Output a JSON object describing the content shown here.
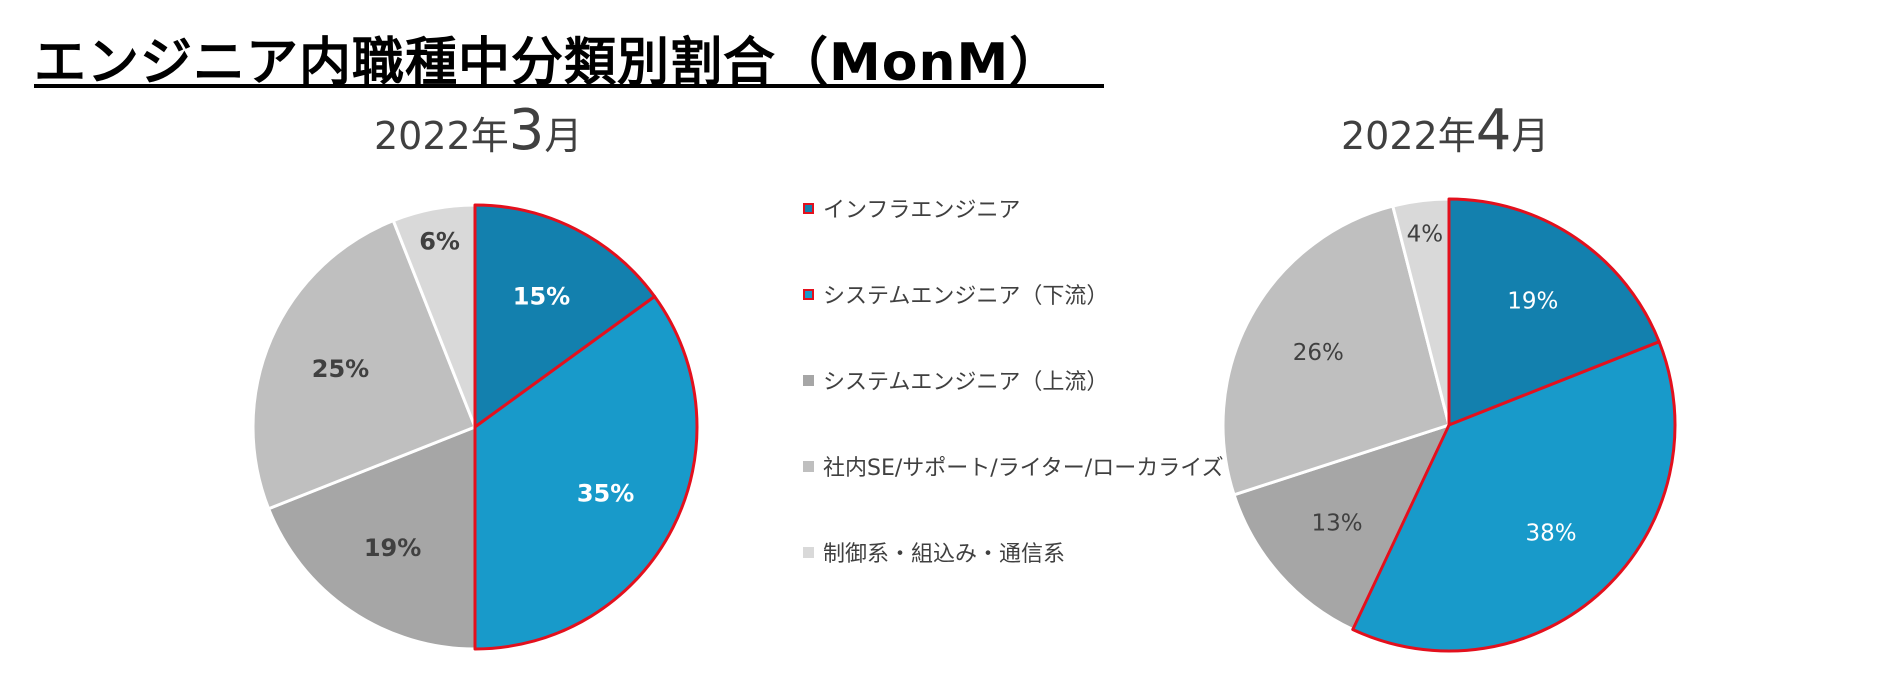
{
  "page": {
    "title": "エンジニア内職種中分類別割合（MonM）"
  },
  "legend": {
    "items": [
      {
        "label": "インフラエンジニア",
        "color": "#1380AE",
        "outline": "#E3101D"
      },
      {
        "label": "システムエンジニア（下流）",
        "color": "#189ACA",
        "outline": "#E3101D"
      },
      {
        "label": "システムエンジニア（上流）",
        "color": "#A6A6A6",
        "outline": ""
      },
      {
        "label": "社内SE/サポート/ライター/ローカライズ",
        "color": "#BFBFBF",
        "outline": ""
      },
      {
        "label": "制御系・組込み・通信系",
        "color": "#D9D9D9",
        "outline": ""
      }
    ]
  },
  "chart_data": [
    {
      "type": "pie",
      "title_year": "2022年",
      "title_month": "3",
      "title_suffix": "月",
      "labels": [
        "インフラエンジニア",
        "システムエンジニア（下流）",
        "システムエンジニア（上流）",
        "社内SE/サポート/ライター/ローカライズ",
        "制御系・組込み・通信系"
      ],
      "values": [
        15,
        35,
        19,
        25,
        6
      ],
      "value_labels": [
        "15%",
        "35%",
        "19%",
        "25%",
        "6%"
      ],
      "highlighted": [
        true,
        true,
        false,
        false,
        false
      ],
      "label_colors": [
        "#FFFFFF",
        "#FFFFFF",
        "#404040",
        "#404040",
        "#404040"
      ],
      "label_bold": true
    },
    {
      "type": "pie",
      "title_year": "2022年",
      "title_month": "4",
      "title_suffix": "月",
      "labels": [
        "インフラエンジニア",
        "システムエンジニア（下流）",
        "システムエンジニア（上流）",
        "社内SE/サポート/ライター/ローカライズ",
        "制御系・組込み・通信系"
      ],
      "values": [
        19,
        38,
        13,
        26,
        4
      ],
      "value_labels": [
        "19%",
        "38%",
        "13%",
        "26%",
        "4%"
      ],
      "highlighted": [
        true,
        true,
        false,
        false,
        false
      ],
      "label_colors": [
        "#FFFFFF",
        "#FFFFFF",
        "#404040",
        "#404040",
        "#404040"
      ],
      "label_bold": false
    }
  ],
  "colors": {
    "slices": [
      "#1380AE",
      "#189ACA",
      "#A6A6A6",
      "#BFBFBF",
      "#D9D9D9"
    ],
    "highlight_outline": "#E3101D"
  }
}
